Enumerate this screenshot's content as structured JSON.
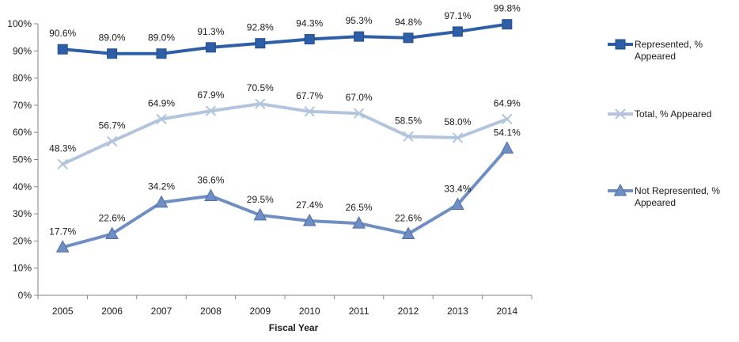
{
  "chart_data": {
    "type": "line",
    "title": "",
    "xlabel": "Fiscal Year",
    "ylabel": "",
    "categories": [
      "2005",
      "2006",
      "2007",
      "2008",
      "2009",
      "2010",
      "2011",
      "2012",
      "2013",
      "2014"
    ],
    "ylim": [
      0,
      100
    ],
    "yticks": [
      "0%",
      "10%",
      "20%",
      "30%",
      "40%",
      "50%",
      "60%",
      "70%",
      "80%",
      "90%",
      "100%"
    ],
    "grid": false,
    "legend_position": "right",
    "series": [
      {
        "name": "Represented, % Appeared",
        "legend_lines": [
          "Represented, %",
          "Appeared"
        ],
        "color": "#2E5FA6",
        "marker": "square",
        "values": [
          90.6,
          89.0,
          89.0,
          91.3,
          92.8,
          94.3,
          95.3,
          94.8,
          97.1,
          99.8
        ],
        "labels": [
          "90.6%",
          "89.0%",
          "89.0%",
          "91.3%",
          "92.8%",
          "94.3%",
          "95.3%",
          "94.8%",
          "97.1%",
          "99.8%"
        ]
      },
      {
        "name": "Total, % Appeared",
        "legend_lines": [
          "Total, % Appeared"
        ],
        "color": "#B3C4DE",
        "marker": "x",
        "values": [
          48.3,
          56.7,
          64.9,
          67.9,
          70.5,
          67.7,
          67.0,
          58.5,
          58.0,
          64.9
        ],
        "labels": [
          "48.3%",
          "56.7%",
          "64.9%",
          "67.9%",
          "70.5%",
          "67.7%",
          "67.0%",
          "58.5%",
          "58.0%",
          "64.9%"
        ]
      },
      {
        "name": "Not Represented, % Appeared",
        "legend_lines": [
          "Not Represented, %",
          "Appeared"
        ],
        "color": "#6F8EC4",
        "marker": "triangle",
        "values": [
          17.7,
          22.6,
          34.2,
          36.6,
          29.5,
          27.4,
          26.5,
          22.6,
          33.4,
          54.1
        ],
        "labels": [
          "17.7%",
          "22.6%",
          "34.2%",
          "36.6%",
          "29.5%",
          "27.4%",
          "26.5%",
          "22.6%",
          "33.4%",
          "54.1%"
        ]
      }
    ]
  }
}
